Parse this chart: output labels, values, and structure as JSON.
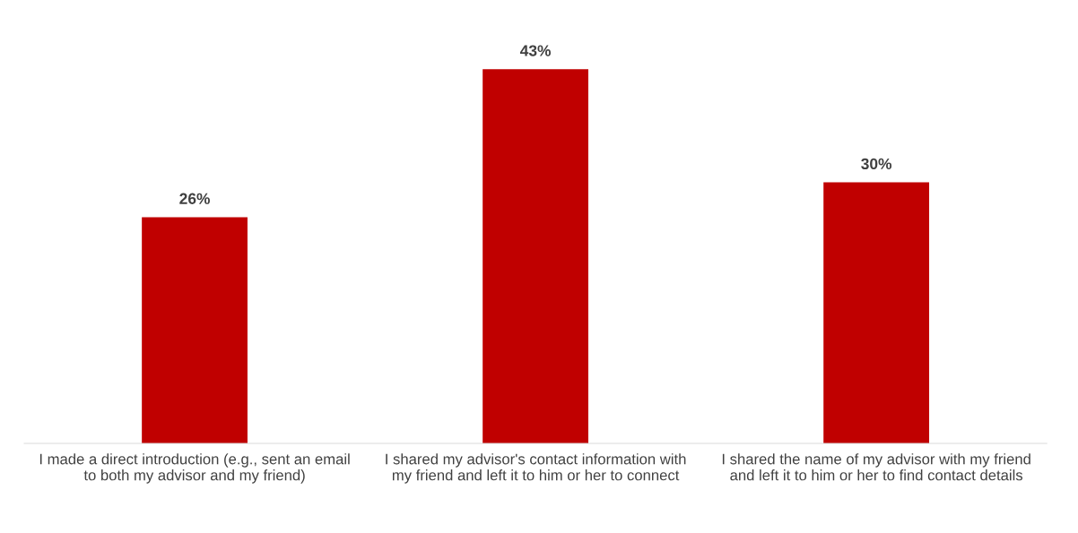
{
  "chart_data": {
    "type": "bar",
    "categories": [
      "I made a direct introduction (e.g., sent an email\nto both my advisor and my friend)",
      "I shared my advisor's contact information with\nmy friend and left it to him or her to connect",
      "I shared the name of my advisor with my friend\nand left it to him or her to find contact details"
    ],
    "values": [
      26,
      43,
      30
    ],
    "value_labels": [
      "26%",
      "43%",
      "30%"
    ],
    "color": "#c00000",
    "grid": false,
    "legend": false
  }
}
